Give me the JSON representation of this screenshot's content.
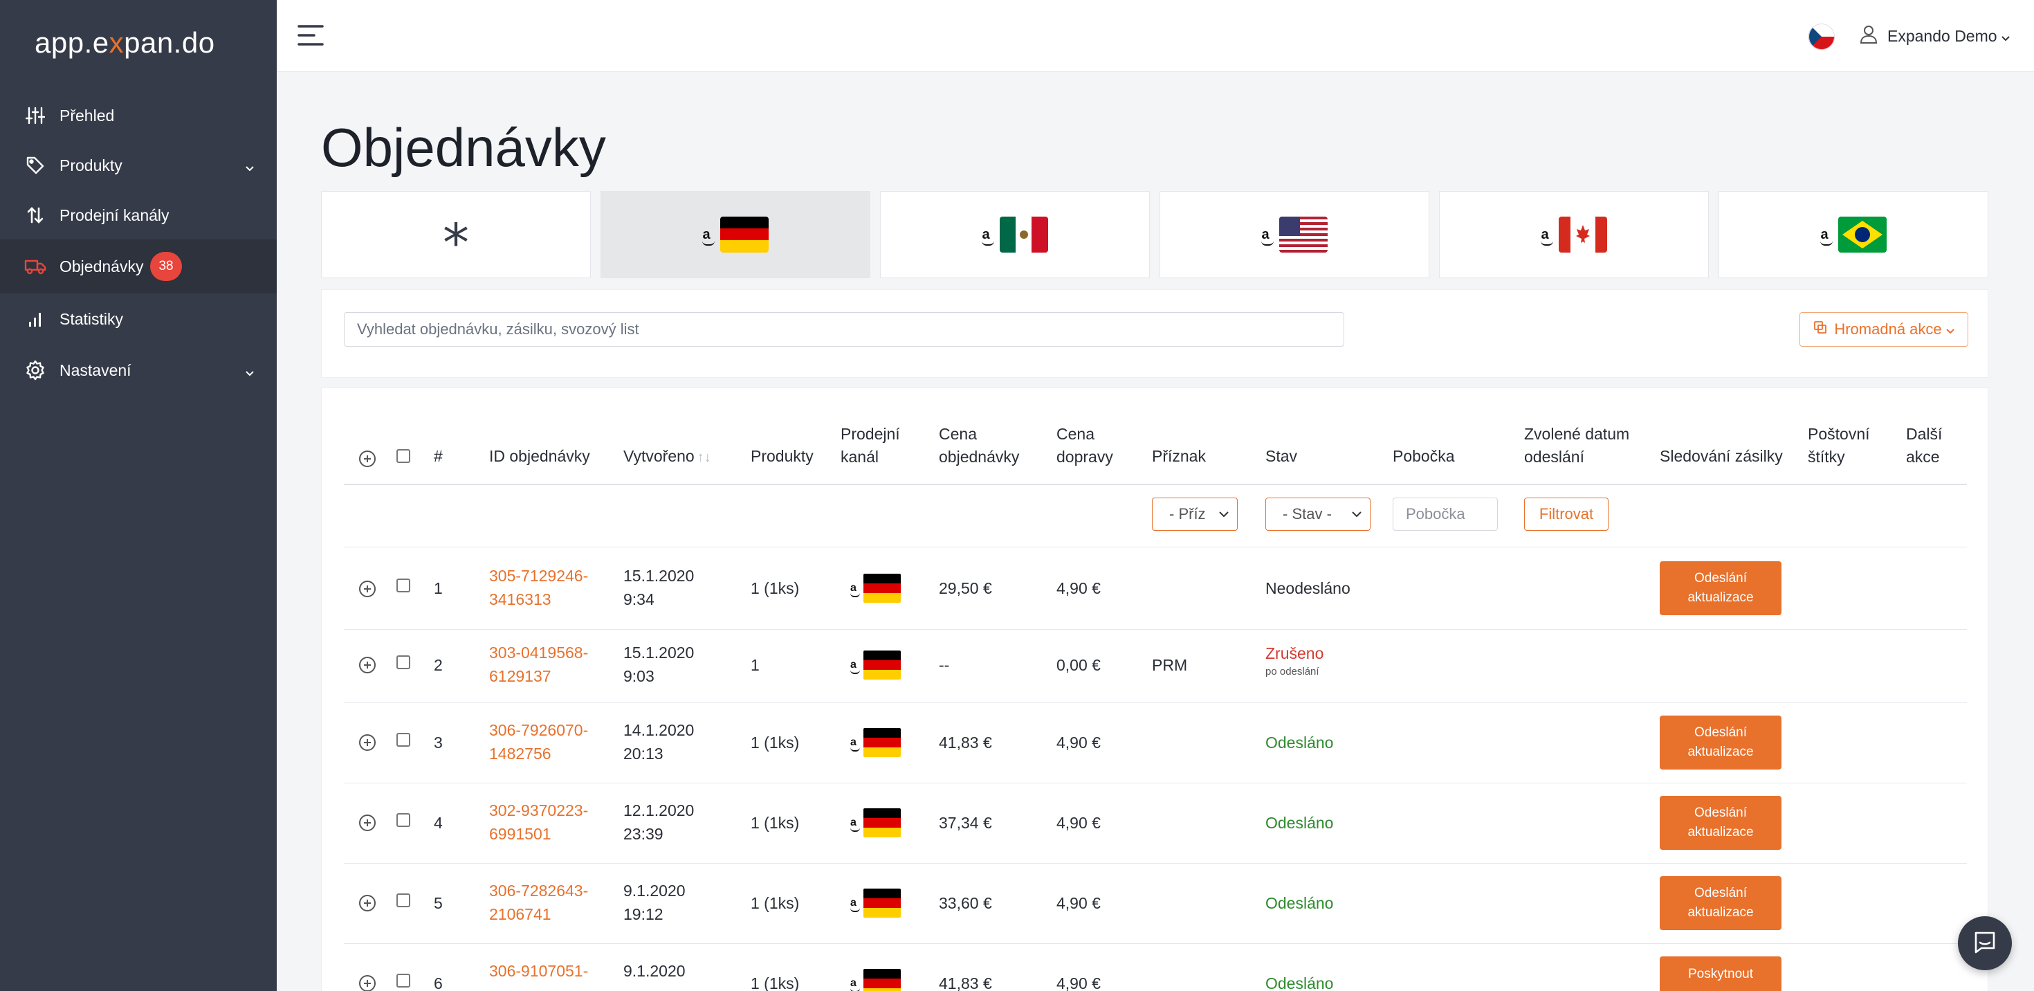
{
  "sidebar": {
    "logo_prefix": "app.e",
    "logo_x": "x",
    "logo_suffix": "pan.do",
    "items": [
      {
        "label": "Přehled",
        "icon": "sliders-icon"
      },
      {
        "label": "Produkty",
        "icon": "tag-icon",
        "expandable": true
      },
      {
        "label": "Prodejní kanály",
        "icon": "arrows-updown-icon"
      },
      {
        "label": "Objednávky",
        "icon": "truck-icon",
        "badge": "38",
        "active": true
      },
      {
        "label": "Statistiky",
        "icon": "bar-chart-icon"
      },
      {
        "label": "Nastavení",
        "icon": "gear-icon",
        "expandable": true
      }
    ]
  },
  "topbar": {
    "user_name": "Expando Demo",
    "language_flag": "cz"
  },
  "page": {
    "title": "Objednávky"
  },
  "channel_tabs": [
    {
      "label": "*",
      "country": "all"
    },
    {
      "label": "a",
      "country": "de",
      "active": true
    },
    {
      "label": "a",
      "country": "mx"
    },
    {
      "label": "a",
      "country": "us"
    },
    {
      "label": "a",
      "country": "ca"
    },
    {
      "label": "a",
      "country": "br"
    }
  ],
  "search": {
    "placeholder": "Vyhledat objednávku, zásilku, svozový list",
    "bulk_action_label": "Hromadná akce"
  },
  "table": {
    "headers": {
      "num": "#",
      "order_id": "ID objednávky",
      "created": "Vytvořeno",
      "products": "Produkty",
      "channel_1": "Prodejní",
      "channel_2": "kanál",
      "price_1": "Cena",
      "price_2": "objednávky",
      "shipping_1": "Cena",
      "shipping_2": "dopravy",
      "flag": "Příznak",
      "status": "Stav",
      "branch": "Pobočka",
      "ship_date_1": "Zvolené datum",
      "ship_date_2": "odeslání",
      "tracking": "Sledování zásilky",
      "labels_1": "Poštovní",
      "labels_2": "štítky",
      "more_1": "Další",
      "more_2": "akce"
    },
    "filters": {
      "flag_select": "- Příz",
      "status_select": "- Stav -",
      "branch_placeholder": "Pobočka",
      "filter_button": "Filtrovat"
    },
    "rows": [
      {
        "num": "1",
        "id_1": "305-7129246-",
        "id_2": "3416313",
        "date": "15.1.2020",
        "time": "9:34",
        "products": "1 (1ks)",
        "price": "29,50 €",
        "shipping": "4,90 €",
        "flag": "",
        "status": "Neodesláno",
        "status_sub": "",
        "action_1": "Odeslání",
        "action_2": "aktualizace"
      },
      {
        "num": "2",
        "id_1": "303-0419568-",
        "id_2": "6129137",
        "date": "15.1.2020",
        "time": "9:03",
        "products": "1",
        "price": "--",
        "shipping": "0,00 €",
        "flag": "PRM",
        "status": "Zrušeno",
        "status_sub": "po odeslání",
        "action_1": "",
        "action_2": ""
      },
      {
        "num": "3",
        "id_1": "306-7926070-",
        "id_2": "1482756",
        "date": "14.1.2020",
        "time": "20:13",
        "products": "1 (1ks)",
        "price": "41,83 €",
        "shipping": "4,90 €",
        "flag": "",
        "status": "Odesláno",
        "status_sub": "",
        "action_1": "Odeslání",
        "action_2": "aktualizace"
      },
      {
        "num": "4",
        "id_1": "302-9370223-",
        "id_2": "6991501",
        "date": "12.1.2020",
        "time": "23:39",
        "products": "1 (1ks)",
        "price": "37,34 €",
        "shipping": "4,90 €",
        "flag": "",
        "status": "Odesláno",
        "status_sub": "",
        "action_1": "Odeslání",
        "action_2": "aktualizace"
      },
      {
        "num": "5",
        "id_1": "306-7282643-",
        "id_2": "2106741",
        "date": "9.1.2020",
        "time": "19:12",
        "products": "1 (1ks)",
        "price": "33,60 €",
        "shipping": "4,90 €",
        "flag": "",
        "status": "Odesláno",
        "status_sub": "",
        "action_1": "Odeslání",
        "action_2": "aktualizace"
      },
      {
        "num": "6",
        "id_1": "306-9107051-",
        "id_2": "",
        "date": "9.1.2020",
        "time": "",
        "products": "1 (1ks)",
        "price": "41,83 €",
        "shipping": "4,90 €",
        "flag": "",
        "status": "Odesláno",
        "status_sub": "",
        "action_1": "Poskytnout",
        "action_2": ""
      }
    ]
  },
  "colors": {
    "accent": "#e8712c",
    "sidebar": "#353b48",
    "success": "#2e8b2e",
    "danger": "#d43a30"
  }
}
